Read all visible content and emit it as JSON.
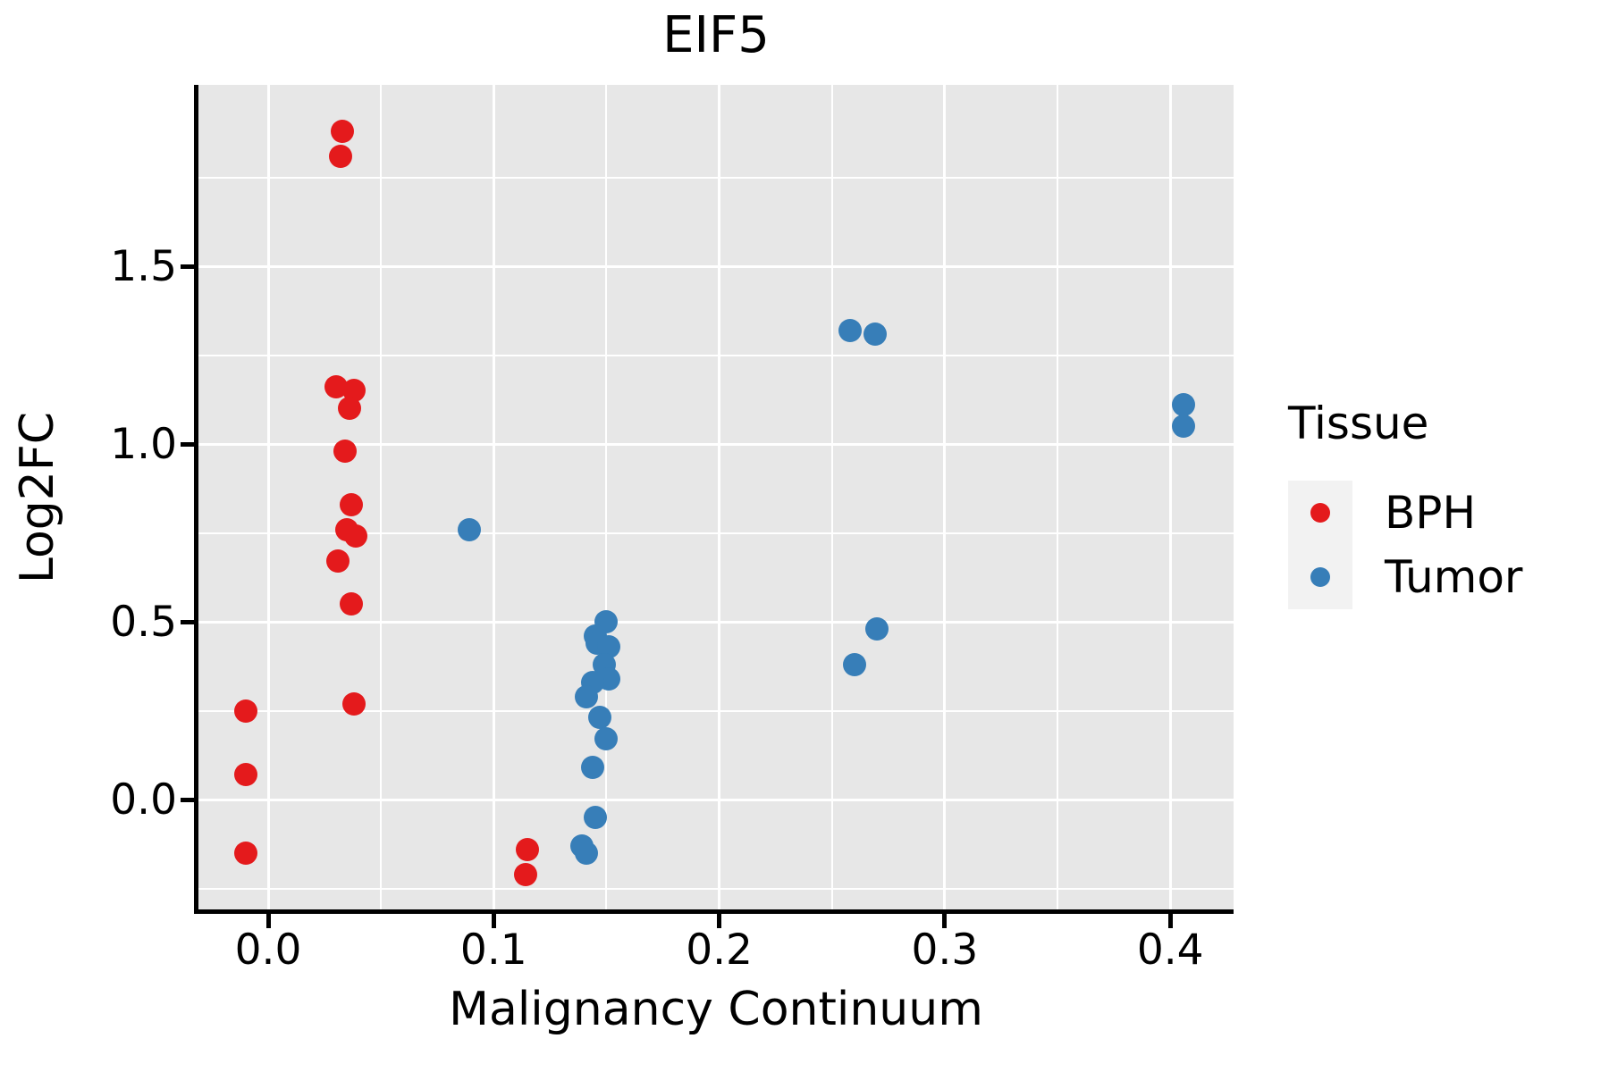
{
  "title": "EIF5",
  "axes": {
    "x_label": "Malignancy Continuum",
    "y_label": "Log2FC",
    "x_tick_labels": [
      "0.0",
      "0.1",
      "0.2",
      "0.3",
      "0.4"
    ],
    "y_tick_labels": [
      "0.0",
      "0.5",
      "1.0",
      "1.5"
    ]
  },
  "legend": {
    "title": "Tissue",
    "items": [
      {
        "label": "BPH",
        "color": "#E41A1C"
      },
      {
        "label": "Tumor",
        "color": "#377EB8"
      }
    ]
  },
  "colors": {
    "panel_background": "#E7E7E7",
    "gridline": "#FFFFFF",
    "spine": "#000000",
    "bph": "#E41A1C",
    "tumor": "#377EB8",
    "legend_key_background": "#F2F2F2"
  },
  "chart_data": {
    "type": "scatter",
    "title": "EIF5",
    "xlabel": "Malignancy Continuum",
    "ylabel": "Log2FC",
    "xlim": [
      -0.031,
      0.429
    ],
    "ylim": [
      -0.31,
      1.99
    ],
    "grid": true,
    "legend_position": "right-center",
    "x_major_ticks": [
      0,
      0.1,
      0.2,
      0.3,
      0.4
    ],
    "y_major_ticks": [
      0,
      0.5,
      1.0,
      1.5
    ],
    "x_minor_gridlines": [
      0.05,
      0.15,
      0.25,
      0.35
    ],
    "y_minor_gridlines": [
      -0.25,
      0.25,
      0.75,
      1.25,
      1.75
    ],
    "series": [
      {
        "name": "BPH",
        "color": "#E41A1C",
        "points": [
          [
            0.033,
            1.88
          ],
          [
            0.032,
            1.81
          ],
          [
            0.03,
            1.16
          ],
          [
            0.038,
            1.15
          ],
          [
            0.036,
            1.1
          ],
          [
            0.034,
            0.98
          ],
          [
            0.037,
            0.83
          ],
          [
            0.035,
            0.76
          ],
          [
            0.039,
            0.74
          ],
          [
            0.031,
            0.67
          ],
          [
            0.037,
            0.55
          ],
          [
            0.038,
            0.27
          ],
          [
            -0.01,
            0.25
          ],
          [
            -0.01,
            0.07
          ],
          [
            -0.01,
            -0.15
          ],
          [
            0.115,
            -0.14
          ],
          [
            0.114,
            -0.21
          ]
        ]
      },
      {
        "name": "Tumor",
        "color": "#377EB8",
        "points": [
          [
            0.089,
            0.76
          ],
          [
            0.258,
            1.32
          ],
          [
            0.269,
            1.31
          ],
          [
            0.406,
            1.11
          ],
          [
            0.406,
            1.05
          ],
          [
            0.27,
            0.48
          ],
          [
            0.26,
            0.38
          ],
          [
            0.15,
            0.5
          ],
          [
            0.145,
            0.46
          ],
          [
            0.146,
            0.44
          ],
          [
            0.151,
            0.43
          ],
          [
            0.149,
            0.38
          ],
          [
            0.151,
            0.34
          ],
          [
            0.144,
            0.33
          ],
          [
            0.141,
            0.29
          ],
          [
            0.147,
            0.23
          ],
          [
            0.15,
            0.17
          ],
          [
            0.144,
            0.09
          ],
          [
            0.145,
            -0.05
          ],
          [
            0.139,
            -0.13
          ],
          [
            0.141,
            -0.15
          ]
        ]
      }
    ]
  }
}
